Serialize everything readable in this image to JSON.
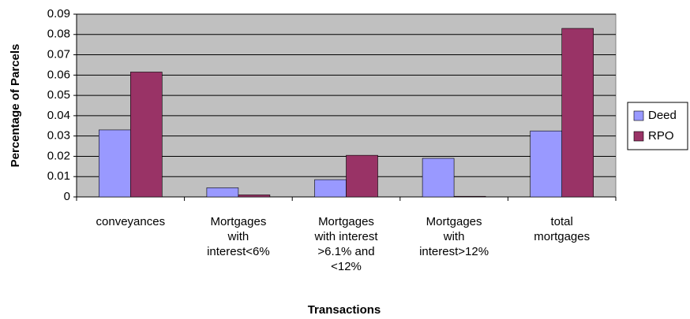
{
  "chart_data": {
    "type": "bar",
    "x_label": "Transactions",
    "y_label": "Percentage of Parcels",
    "categories": [
      "conveyances",
      "Mortgages\nwith\ninterest<6%",
      "Mortgages\nwith interest\n>6.1% and\n<12%",
      "Mortgages\nwith\ninterest>12%",
      "total\nmortgages"
    ],
    "series": [
      {
        "name": "Deed",
        "color": "#9999ff",
        "values": [
          0.033,
          0.0045,
          0.0085,
          0.019,
          0.0325
        ]
      },
      {
        "name": "RPO",
        "color": "#993366",
        "values": [
          0.0615,
          0.001,
          0.0205,
          0.0003,
          0.083
        ]
      }
    ],
    "ylim": [
      0,
      0.09
    ],
    "yticks": [
      0,
      0.01,
      0.02,
      0.03,
      0.04,
      0.05,
      0.06,
      0.07,
      0.08,
      0.09
    ],
    "grid": true,
    "legend": "right"
  }
}
